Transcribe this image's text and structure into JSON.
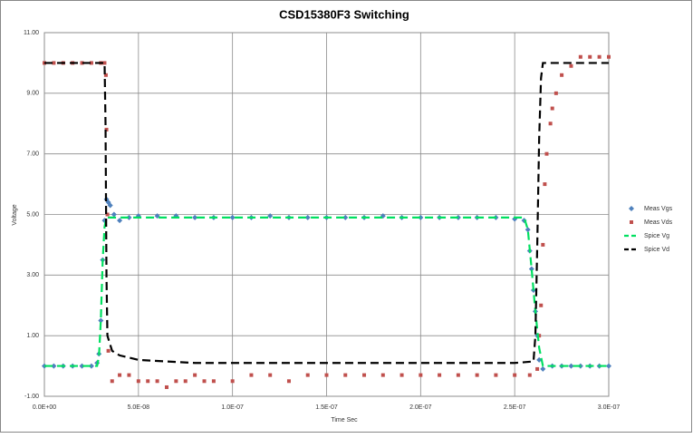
{
  "chart_data": {
    "type": "scatter-line",
    "title": "CSD15380F3 Switching",
    "x_label": "Time Sec",
    "y_label": "Voltage",
    "xlim": [
      0,
      3e-07
    ],
    "ylim": [
      -1,
      11
    ],
    "xticks": [
      {
        "value": 0,
        "label": "0.0E+00"
      },
      {
        "value": 5e-08,
        "label": "5.0E-08"
      },
      {
        "value": 1e-07,
        "label": "1.0E-07"
      },
      {
        "value": 1.5e-07,
        "label": "1.5E-07"
      },
      {
        "value": 2e-07,
        "label": "2.0E-07"
      },
      {
        "value": 2.5e-07,
        "label": "2.5E-07"
      },
      {
        "value": 3e-07,
        "label": "3.0E-07"
      }
    ],
    "yticks": [
      {
        "value": -1,
        "label": "-1.00"
      },
      {
        "value": 1,
        "label": "1.00"
      },
      {
        "value": 3,
        "label": "3.00"
      },
      {
        "value": 5,
        "label": "5.00"
      },
      {
        "value": 7,
        "label": "7.00"
      },
      {
        "value": 9,
        "label": "9.00"
      },
      {
        "value": 11,
        "label": "11.00"
      }
    ],
    "grid": true,
    "legend": "right",
    "series": [
      {
        "name": "Meas Vgs",
        "color": "#4f81bd",
        "style": "diamond",
        "x": [
          0,
          5e-09,
          1e-08,
          1.5e-08,
          2e-08,
          2.5e-08,
          2.8e-08,
          2.9e-08,
          3e-08,
          3.1e-08,
          3.2e-08,
          3.3e-08,
          3.4e-08,
          3.5e-08,
          3.7e-08,
          4e-08,
          4.5e-08,
          5e-08,
          6e-08,
          7e-08,
          8e-08,
          9e-08,
          1e-07,
          1.1e-07,
          1.2e-07,
          1.3e-07,
          1.4e-07,
          1.5e-07,
          1.6e-07,
          1.7e-07,
          1.8e-07,
          1.9e-07,
          2e-07,
          2.1e-07,
          2.2e-07,
          2.3e-07,
          2.4e-07,
          2.5e-07,
          2.55e-07,
          2.57e-07,
          2.58e-07,
          2.59e-07,
          2.6e-07,
          2.61e-07,
          2.62e-07,
          2.63e-07,
          2.65e-07,
          2.7e-07,
          2.75e-07,
          2.8e-07,
          2.85e-07,
          2.9e-07,
          2.95e-07,
          3e-07
        ],
        "values": [
          0,
          0,
          0,
          0,
          0,
          0,
          0.1,
          0.4,
          1.5,
          3.5,
          4.8,
          5.5,
          5.4,
          5.3,
          5.0,
          4.8,
          4.9,
          4.95,
          4.95,
          4.95,
          4.9,
          4.9,
          4.9,
          4.9,
          4.95,
          4.9,
          4.9,
          4.9,
          4.9,
          4.9,
          4.95,
          4.9,
          4.9,
          4.9,
          4.9,
          4.9,
          4.9,
          4.85,
          4.8,
          4.5,
          3.8,
          3.2,
          2.5,
          1.8,
          1.0,
          0.2,
          -0.1,
          0,
          0,
          0,
          0,
          0,
          0,
          0
        ]
      },
      {
        "name": "Meas Vds",
        "color": "#c0504d",
        "style": "square",
        "x": [
          0,
          5e-09,
          1e-08,
          1.5e-08,
          2e-08,
          2.5e-08,
          3e-08,
          3.2e-08,
          3.27e-08,
          3.3e-08,
          3.35e-08,
          3.4e-08,
          3.6e-08,
          4e-08,
          4.5e-08,
          5e-08,
          5.5e-08,
          6e-08,
          6.5e-08,
          7e-08,
          7.5e-08,
          8e-08,
          8.5e-08,
          9e-08,
          1e-07,
          1.1e-07,
          1.2e-07,
          1.3e-07,
          1.4e-07,
          1.5e-07,
          1.6e-07,
          1.7e-07,
          1.8e-07,
          1.9e-07,
          2e-07,
          2.1e-07,
          2.2e-07,
          2.3e-07,
          2.4e-07,
          2.5e-07,
          2.58e-07,
          2.62e-07,
          2.63e-07,
          2.64e-07,
          2.65e-07,
          2.66e-07,
          2.67e-07,
          2.69e-07,
          2.7e-07,
          2.72e-07,
          2.75e-07,
          2.8e-07,
          2.85e-07,
          2.9e-07,
          2.95e-07,
          3e-07
        ],
        "values": [
          10,
          10,
          10,
          10,
          10,
          10,
          10,
          10,
          9.6,
          7.8,
          5,
          0.5,
          -0.5,
          -0.3,
          -0.3,
          -0.5,
          -0.5,
          -0.5,
          -0.7,
          -0.5,
          -0.5,
          -0.3,
          -0.5,
          -0.5,
          -0.5,
          -0.3,
          -0.3,
          -0.5,
          -0.3,
          -0.3,
          -0.3,
          -0.3,
          -0.3,
          -0.3,
          -0.3,
          -0.3,
          -0.3,
          -0.3,
          -0.3,
          -0.3,
          -0.3,
          -0.1,
          1,
          2,
          4,
          6,
          7,
          8,
          8.5,
          9,
          9.6,
          9.9,
          10.2,
          10.2,
          10.2,
          10.2
        ]
      },
      {
        "name": "Spice Vg",
        "color": "#00e060",
        "style": "dash",
        "x": [
          0,
          2.8e-08,
          2.9e-08,
          3e-08,
          3.1e-08,
          3.2e-08,
          3.3e-08,
          3.5e-08,
          1e-07,
          2e-07,
          2.55e-07,
          2.57e-07,
          2.59e-07,
          2.61e-07,
          2.63e-07,
          2.65e-07,
          3e-07
        ],
        "values": [
          0,
          0,
          0.3,
          1.5,
          3.5,
          4.6,
          4.9,
          4.9,
          4.9,
          4.9,
          4.9,
          4.5,
          3.2,
          1.8,
          0.6,
          0,
          0
        ]
      },
      {
        "name": "Spice Vd",
        "color": "#000000",
        "style": "dash",
        "x": [
          0,
          3.2e-08,
          3.25e-08,
          3.3e-08,
          3.35e-08,
          3.6e-08,
          4e-08,
          5e-08,
          8e-08,
          1.5e-07,
          2.5e-07,
          2.6e-07,
          2.61e-07,
          2.62e-07,
          2.63e-07,
          2.64e-07,
          2.65e-07,
          3e-07
        ],
        "values": [
          10,
          10,
          8,
          3,
          1,
          0.5,
          0.35,
          0.2,
          0.1,
          0.1,
          0.1,
          0.15,
          1,
          4,
          7.5,
          9.5,
          10,
          10
        ]
      }
    ]
  }
}
